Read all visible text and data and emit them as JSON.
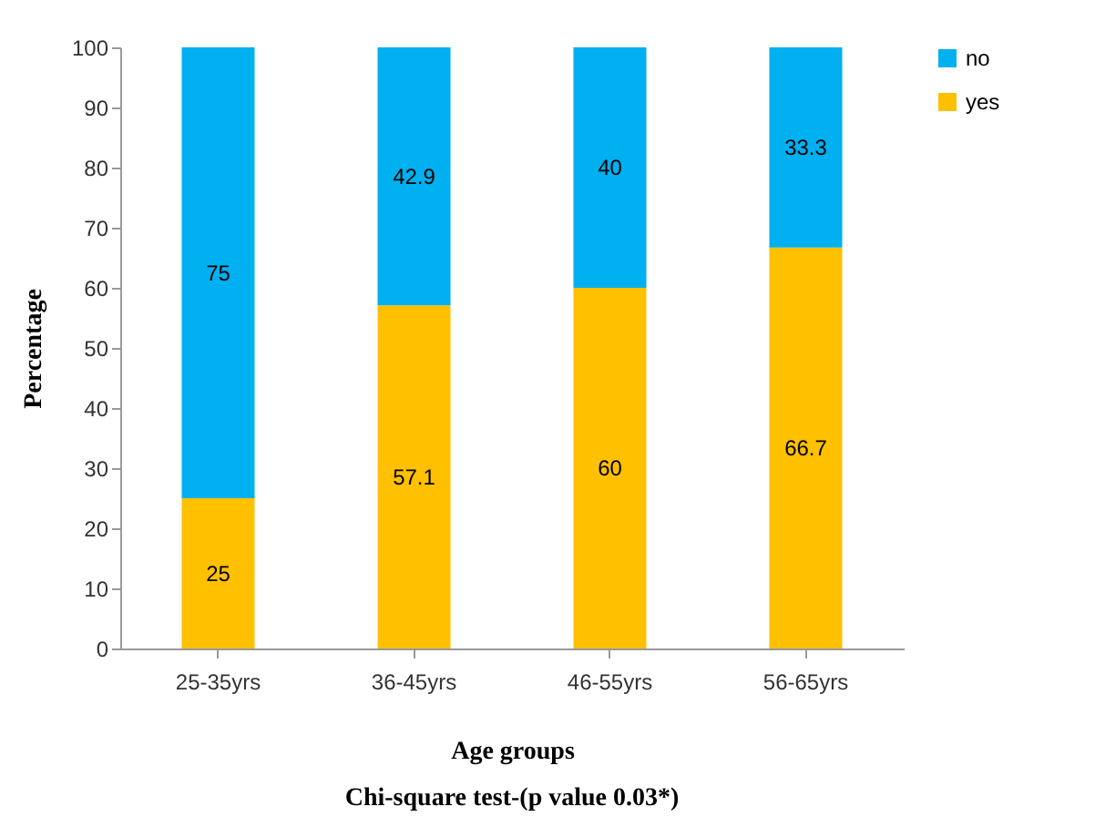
{
  "chart_data": {
    "type": "bar",
    "stacked": true,
    "xlabel": "Age groups",
    "ylabel": "Percentage",
    "annotations": [
      "Chi-square test-(p value 0.03*)"
    ],
    "categories": [
      "25-35yrs",
      "36-45yrs",
      "46-55yrs",
      "56-65yrs"
    ],
    "series": [
      {
        "name": "yes",
        "color": "#ffc000",
        "values": [
          25,
          57.1,
          60,
          66.7
        ]
      },
      {
        "name": "no",
        "color": "#00b0f0",
        "values": [
          75,
          42.9,
          40,
          33.3
        ]
      }
    ],
    "ylim": [
      0,
      100
    ],
    "yticks": [
      0,
      10,
      20,
      30,
      40,
      50,
      60,
      70,
      80,
      90,
      100
    ],
    "grid": false,
    "legend": "right",
    "data_labels": true
  }
}
